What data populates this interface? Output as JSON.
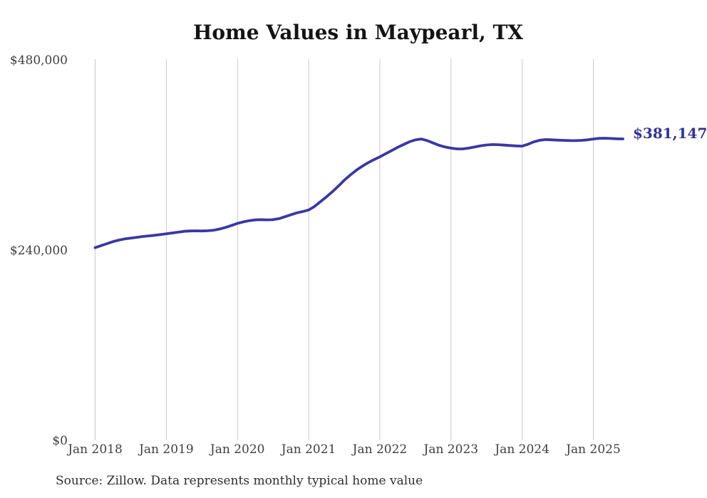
{
  "title": "Home Values in Maypearl, TX",
  "source_note": "Source: Zillow. Data represents monthly typical home value",
  "latest_value_label": "$381,147",
  "colors": {
    "line": "#3a38a2",
    "latest_label": "#31319b",
    "grid": "#c9c9c9",
    "axis_text": "#3f3f3f",
    "title_text": "#141414",
    "source_text": "#2e2e2e",
    "background": "#ffffff"
  },
  "y_axis": {
    "tick_labels": [
      "$0",
      "$240,000",
      "$480,000"
    ],
    "tick_values": [
      0,
      240000,
      480000
    ],
    "min": 0,
    "max": 480000
  },
  "x_axis": {
    "tick_labels": [
      "Jan 2018",
      "Jan 2019",
      "Jan 2020",
      "Jan 2021",
      "Jan 2022",
      "Jan 2023",
      "Jan 2024",
      "Jan 2025"
    ]
  },
  "chart_data": {
    "type": "line",
    "title": "Home Values in Maypearl, TX",
    "series_name": "Monthly typical home value (USD)",
    "frequency": "monthly",
    "ylim": [
      0,
      480000
    ],
    "grid": "vertical yearly gridlines only",
    "legend": "none",
    "annotations": [
      {
        "text": "$381,147",
        "position": "end-of-line",
        "color": "#31319b"
      }
    ],
    "x": [
      "2018-01",
      "2018-02",
      "2018-03",
      "2018-04",
      "2018-05",
      "2018-06",
      "2018-07",
      "2018-08",
      "2018-09",
      "2018-10",
      "2018-11",
      "2018-12",
      "2019-01",
      "2019-02",
      "2019-03",
      "2019-04",
      "2019-05",
      "2019-06",
      "2019-07",
      "2019-08",
      "2019-09",
      "2019-10",
      "2019-11",
      "2019-12",
      "2020-01",
      "2020-02",
      "2020-03",
      "2020-04",
      "2020-05",
      "2020-06",
      "2020-07",
      "2020-08",
      "2020-09",
      "2020-10",
      "2020-11",
      "2020-12",
      "2021-01",
      "2021-02",
      "2021-03",
      "2021-04",
      "2021-05",
      "2021-06",
      "2021-07",
      "2021-08",
      "2021-09",
      "2021-10",
      "2021-11",
      "2021-12",
      "2022-01",
      "2022-02",
      "2022-03",
      "2022-04",
      "2022-05",
      "2022-06",
      "2022-07",
      "2022-08",
      "2022-09",
      "2022-10",
      "2022-11",
      "2022-12",
      "2023-01",
      "2023-02",
      "2023-03",
      "2023-04",
      "2023-05",
      "2023-06",
      "2023-07",
      "2023-08",
      "2023-09",
      "2023-10",
      "2023-11",
      "2023-12",
      "2024-01",
      "2024-02",
      "2024-03",
      "2024-04",
      "2024-05",
      "2024-06",
      "2024-07",
      "2024-08",
      "2024-09",
      "2024-10",
      "2024-11",
      "2024-12",
      "2025-01",
      "2025-02",
      "2025-03",
      "2025-04",
      "2025-05",
      "2025-06"
    ],
    "values": [
      244000,
      246500,
      249000,
      251500,
      253500,
      255000,
      256000,
      257000,
      258000,
      258800,
      259500,
      260500,
      261500,
      262500,
      263500,
      264500,
      265000,
      265200,
      265000,
      265300,
      266000,
      267500,
      269500,
      272000,
      274500,
      276500,
      278000,
      279000,
      279300,
      279000,
      279300,
      280500,
      283000,
      285500,
      287800,
      289500,
      291500,
      296000,
      302000,
      308000,
      314500,
      321500,
      329000,
      335500,
      341500,
      346500,
      351000,
      355000,
      358500,
      362500,
      366500,
      370500,
      374000,
      377500,
      380000,
      381000,
      379000,
      376000,
      373000,
      371000,
      369500,
      368500,
      368500,
      369500,
      371000,
      372500,
      373500,
      374000,
      373800,
      373300,
      372800,
      372300,
      372000,
      374500,
      377500,
      379500,
      380300,
      380000,
      379600,
      379300,
      379100,
      379000,
      379300,
      380000,
      381000,
      381800,
      382000,
      381700,
      381300,
      381147
    ]
  }
}
